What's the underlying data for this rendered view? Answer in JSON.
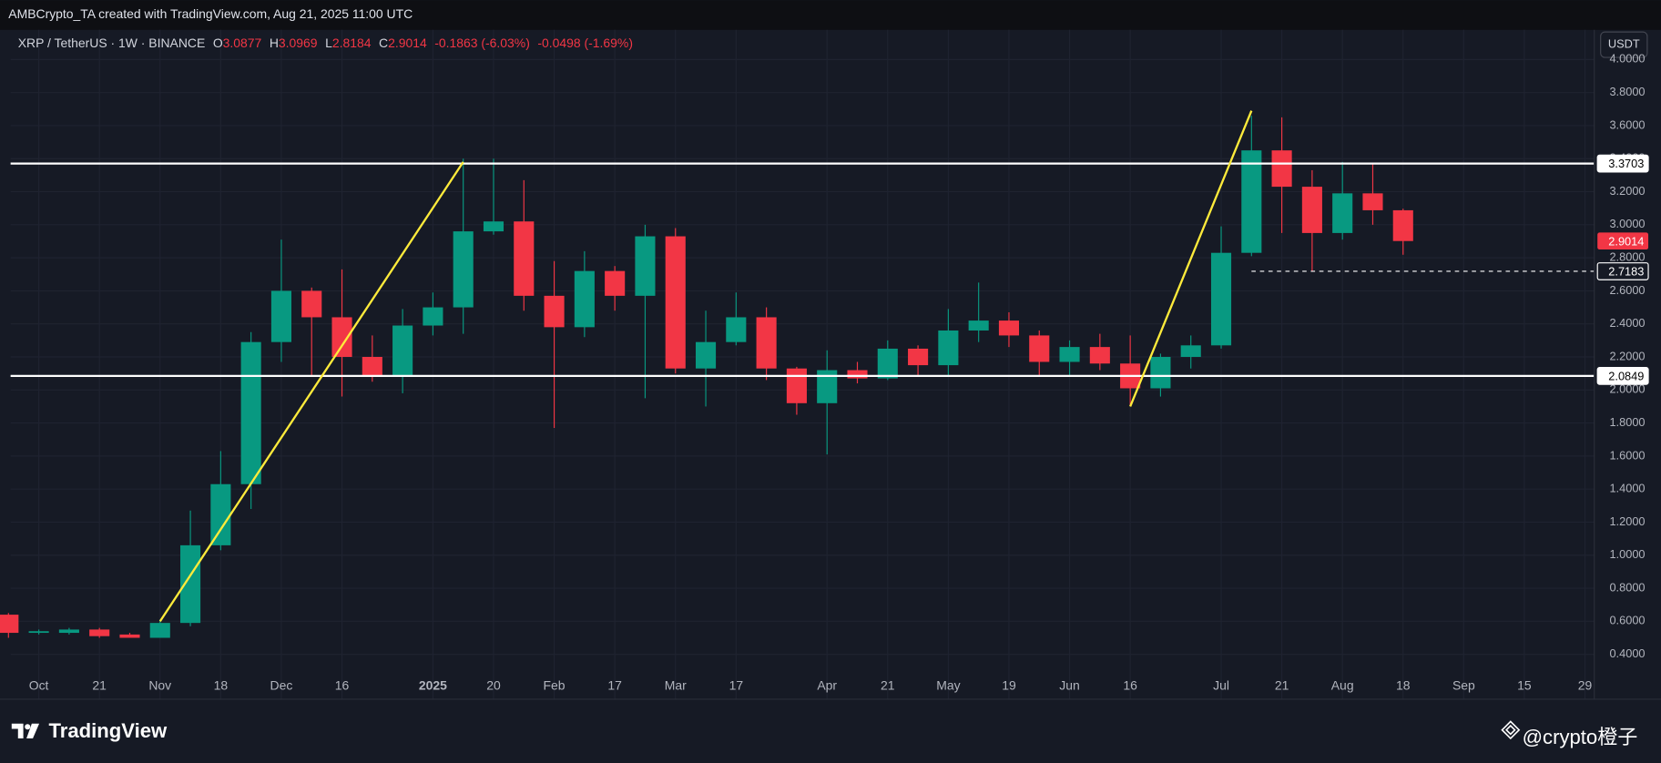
{
  "header": {
    "text": "AMBCrypto_TA created with TradingView.com, Aug 21, 2025 11:00 UTC"
  },
  "chart_data": {
    "type": "candlestick",
    "symbol": "XRP / TetherUS · 1W · BINANCE",
    "legend_labels": {
      "open": "O",
      "high": "H",
      "low": "L",
      "close": "C"
    },
    "change": "-0.1863 (-6.03%)",
    "change2": "-0.0498 (-1.69%)",
    "currency": "USDT",
    "categories": [
      null,
      "Oct",
      null,
      "21",
      null,
      "Nov",
      null,
      "18",
      null,
      "Dec",
      null,
      "16",
      null,
      null,
      "2025",
      null,
      "20",
      null,
      "Feb",
      null,
      "17",
      null,
      "Mar",
      null,
      "17",
      null,
      null,
      "Apr",
      null,
      "21",
      null,
      "May",
      null,
      "19",
      null,
      "Jun",
      null,
      "16",
      null,
      null,
      "Jul",
      null,
      "21",
      null,
      "Aug",
      null,
      "18",
      null,
      "Sep",
      null,
      "15",
      null,
      "29"
    ],
    "open": [
      0.64,
      0.53,
      0.53,
      0.55,
      0.52,
      0.5,
      0.59,
      1.06,
      1.43,
      2.29,
      2.6,
      2.44,
      2.2,
      2.08,
      2.39,
      2.5,
      2.96,
      3.02,
      2.57,
      2.38,
      2.72,
      2.57,
      2.93,
      2.13,
      2.29,
      2.44,
      2.13,
      1.92,
      2.12,
      2.07,
      2.25,
      2.15,
      2.36,
      2.42,
      2.33,
      2.17,
      2.26,
      2.16,
      2.01,
      2.2,
      2.27,
      2.83,
      3.45,
      3.23,
      2.95,
      3.19,
      3.0877,
      null,
      null,
      null,
      null,
      null,
      null
    ],
    "high": [
      0.65,
      0.55,
      0.56,
      0.56,
      0.53,
      0.61,
      1.27,
      1.63,
      2.35,
      2.91,
      2.62,
      2.73,
      2.33,
      2.49,
      2.59,
      3.4,
      3.4,
      3.27,
      2.78,
      2.84,
      2.75,
      3.0,
      2.98,
      2.48,
      2.59,
      2.5,
      2.14,
      2.24,
      2.17,
      2.3,
      2.27,
      2.49,
      2.65,
      2.47,
      2.36,
      2.3,
      2.34,
      2.33,
      2.22,
      2.33,
      2.99,
      3.66,
      3.65,
      3.33,
      3.38,
      3.37,
      3.0969,
      null,
      null,
      null,
      null,
      null,
      null
    ],
    "low": [
      0.5,
      0.52,
      0.52,
      0.5,
      0.5,
      0.5,
      0.57,
      1.03,
      1.28,
      2.17,
      2.08,
      1.96,
      2.05,
      1.98,
      2.33,
      2.34,
      2.94,
      2.48,
      1.77,
      2.32,
      2.48,
      1.95,
      2.1,
      1.9,
      2.27,
      2.06,
      1.85,
      1.61,
      2.04,
      2.06,
      2.08,
      2.08,
      2.29,
      2.26,
      2.08,
      2.08,
      2.12,
      1.91,
      1.96,
      2.13,
      2.25,
      2.81,
      2.95,
      2.72,
      2.91,
      3.0,
      2.8184,
      null,
      null,
      null,
      null,
      null,
      null
    ],
    "close": [
      0.53,
      0.54,
      0.55,
      0.51,
      0.5,
      0.59,
      1.06,
      1.43,
      2.29,
      2.6,
      2.44,
      2.2,
      2.08,
      2.39,
      2.5,
      2.96,
      3.02,
      2.57,
      2.38,
      2.72,
      2.57,
      2.93,
      2.13,
      2.29,
      2.44,
      2.13,
      1.92,
      2.12,
      2.07,
      2.25,
      2.15,
      2.36,
      2.42,
      2.33,
      2.17,
      2.26,
      2.16,
      2.01,
      2.2,
      2.27,
      2.83,
      3.45,
      3.23,
      2.95,
      3.19,
      3.0877,
      2.9014,
      null,
      null,
      null,
      null,
      null,
      null
    ],
    "up_color": "#089981",
    "down_color": "#f23645",
    "ylim": [
      0.282,
      4.1795
    ],
    "yticks": [
      {
        "value": 0.4,
        "label": "0.4000"
      },
      {
        "value": 0.6,
        "label": "0.6000"
      },
      {
        "value": 0.8,
        "label": "0.8000"
      },
      {
        "value": 1.0,
        "label": "1.0000"
      },
      {
        "value": 1.2,
        "label": "1.2000"
      },
      {
        "value": 1.4,
        "label": "1.4000"
      },
      {
        "value": 1.6,
        "label": "1.6000"
      },
      {
        "value": 1.8,
        "label": "1.8000"
      },
      {
        "value": 2.0,
        "label": "2.0000"
      },
      {
        "value": 2.2,
        "label": "2.2000"
      },
      {
        "value": 2.4,
        "label": "2.4000"
      },
      {
        "value": 2.6,
        "label": "2.6000"
      },
      {
        "value": 2.8,
        "label": "2.8000"
      },
      {
        "value": 3.0,
        "label": "3.0000"
      },
      {
        "value": 3.2,
        "label": "3.2000"
      },
      {
        "value": 3.4,
        "label": "3.4000"
      },
      {
        "value": 3.6,
        "label": "3.6000"
      },
      {
        "value": 3.8,
        "label": "3.8000"
      },
      {
        "value": 4.0,
        "label": "4.0000"
      }
    ],
    "grid": true,
    "levels": [
      {
        "value": 3.3703,
        "style": "solid"
      },
      {
        "value": 2.0849,
        "style": "solid"
      },
      {
        "value": 2.7183,
        "style": "dashed"
      }
    ],
    "trendlines": [
      {
        "start": {
          "week": 5,
          "value": 0.6
        },
        "end": {
          "week": 15,
          "value": 3.38
        }
      },
      {
        "start": {
          "week": 37,
          "value": 1.9
        },
        "end": {
          "week": 41,
          "value": 3.69
        }
      }
    ],
    "trendline_color": "#ffeb3b"
  },
  "branding": {
    "logo": "TradingView",
    "watermark": "@crypto橙子"
  }
}
